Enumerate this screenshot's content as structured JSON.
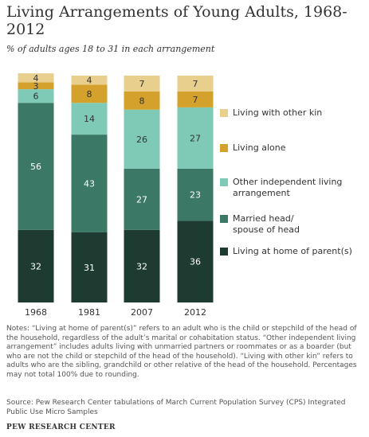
{
  "chart_data": {
    "type": "stacked_bar",
    "title": "Living Arrangements of Young Adults, 1968-2012",
    "subtitle": "% of adults ages 18 to 31 in each arrangement",
    "categories": [
      "1968",
      "1981",
      "2007",
      "2012"
    ],
    "series": [
      {
        "name": "Living at home of parent(s)",
        "color": "#1e3b32",
        "values": [
          32,
          31,
          32,
          36
        ]
      },
      {
        "name": "Married head/ spouse of head",
        "color": "#3b7866",
        "values": [
          56,
          43,
          27,
          23
        ]
      },
      {
        "name": "Other independent living arrangement",
        "color": "#7fcab6",
        "values": [
          6,
          14,
          26,
          27
        ]
      },
      {
        "name": "Living alone",
        "color": "#d4a12c",
        "values": [
          3,
          8,
          8,
          7
        ]
      },
      {
        "name": "Living with other kin",
        "color": "#e8cf8d",
        "values": [
          4,
          4,
          7,
          7
        ]
      }
    ],
    "notes": "Notes: “Living at home of parent(s)” refers to an adult who is the child or stepchild of the head of the household, regardless of the adult’s marital or cohabitation status. “Other independent living arrangement” includes adults living with unmarried partners or roommates or as a boarder (but who are not the child or stepchild of the head of the household). “Living with other kin” refers to adults who are the sibling, grandchild or other relative of the head of the household. Percentages may not total 100% due to rounding.",
    "source": "Source: Pew Research Center tabulations of March Current Population Survey (CPS) Integrated Public Use Micro Samples",
    "footer": "PEW RESEARCH CENTER"
  }
}
